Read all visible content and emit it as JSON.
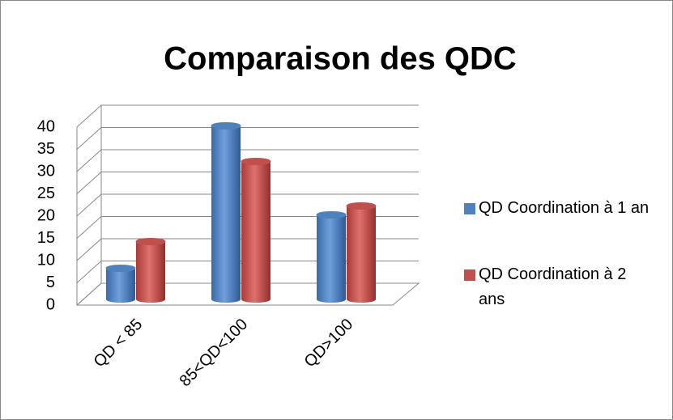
{
  "chart_data": {
    "type": "bar3d",
    "title": "Comparaison des QDC",
    "categories": [
      "QD < 85",
      "85<QD<100",
      "QD>100"
    ],
    "series": [
      {
        "name": "QD Coordination à 1 an",
        "color": "#4f81bd",
        "values": [
          7,
          39,
          19
        ]
      },
      {
        "name": "QD Coordination à 2 ans",
        "color": "#c0504d",
        "values": [
          13,
          31,
          21
        ]
      }
    ],
    "ylim": [
      0,
      40
    ],
    "yticks": [
      0,
      5,
      10,
      15,
      20,
      25,
      30,
      35,
      40
    ],
    "grid": true,
    "legend": "right"
  }
}
